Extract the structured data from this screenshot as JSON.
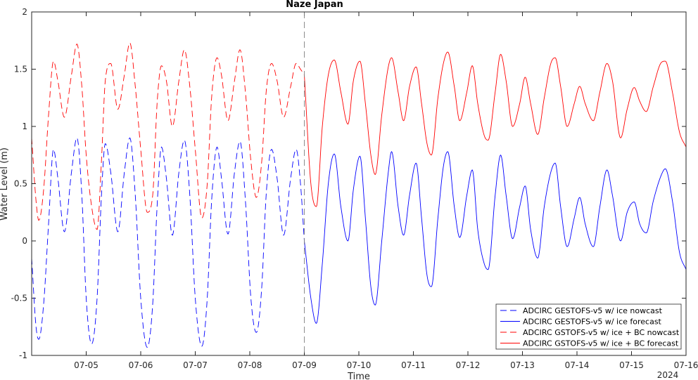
{
  "chart_data": {
    "type": "line",
    "title": "Naze Japan",
    "xlabel": "Time",
    "ylabel": "Water Level (m)",
    "year_label": "2024",
    "xlim": [
      0,
      12
    ],
    "ylim": [
      -1,
      2
    ],
    "x_ticks": [
      "07-05",
      "07-06",
      "07-07",
      "07-08",
      "07-09",
      "07-10",
      "07-11",
      "07-12",
      "07-13",
      "07-14",
      "07-15",
      "07-16"
    ],
    "y_ticks": [
      "-1",
      "-0.5",
      "0",
      "0.5",
      "1",
      "1.5",
      "2"
    ],
    "nowcast_end": 5,
    "legend_position": "bottom-right",
    "colors": {
      "blue": "#0000ff",
      "red": "#ff0000",
      "divider": "#808080"
    },
    "series": [
      {
        "name": "ADCIRC GESTOFS-v5 w/ ice nowcast",
        "color": "#0000ff",
        "style": "dashed",
        "x_range": [
          0,
          5
        ],
        "points": [
          [
            0.0,
            -0.15
          ],
          [
            0.08,
            -0.75
          ],
          [
            0.13,
            -0.86
          ],
          [
            0.22,
            -0.55
          ],
          [
            0.31,
            0.15
          ],
          [
            0.4,
            0.8
          ],
          [
            0.48,
            0.55
          ],
          [
            0.6,
            0.08
          ],
          [
            0.73,
            0.6
          ],
          [
            0.83,
            0.9
          ],
          [
            0.92,
            0.4
          ],
          [
            1.0,
            -0.5
          ],
          [
            1.1,
            -0.9
          ],
          [
            1.2,
            -0.5
          ],
          [
            1.28,
            0.4
          ],
          [
            1.35,
            0.85
          ],
          [
            1.45,
            0.6
          ],
          [
            1.58,
            0.08
          ],
          [
            1.7,
            0.6
          ],
          [
            1.8,
            0.9
          ],
          [
            1.9,
            0.4
          ],
          [
            2.0,
            -0.5
          ],
          [
            2.12,
            -0.93
          ],
          [
            2.22,
            -0.55
          ],
          [
            2.3,
            0.3
          ],
          [
            2.38,
            0.82
          ],
          [
            2.47,
            0.55
          ],
          [
            2.58,
            0.05
          ],
          [
            2.7,
            0.6
          ],
          [
            2.8,
            0.88
          ],
          [
            2.9,
            0.4
          ],
          [
            3.0,
            -0.5
          ],
          [
            3.12,
            -0.92
          ],
          [
            3.22,
            -0.5
          ],
          [
            3.3,
            0.35
          ],
          [
            3.4,
            0.82
          ],
          [
            3.48,
            0.55
          ],
          [
            3.6,
            0.06
          ],
          [
            3.72,
            0.6
          ],
          [
            3.82,
            0.87
          ],
          [
            3.92,
            0.35
          ],
          [
            4.02,
            -0.5
          ],
          [
            4.12,
            -0.8
          ],
          [
            4.22,
            -0.4
          ],
          [
            4.3,
            0.4
          ],
          [
            4.4,
            0.8
          ],
          [
            4.5,
            0.55
          ],
          [
            4.62,
            0.05
          ],
          [
            4.75,
            0.55
          ],
          [
            4.85,
            0.8
          ],
          [
            4.93,
            0.5
          ],
          [
            5.0,
            0.0
          ]
        ]
      },
      {
        "name": "ADCIRC GESTOFS-v5 w/ ice forecast",
        "color": "#0000ff",
        "style": "solid",
        "x_range": [
          5,
          12
        ],
        "points": [
          [
            5.0,
            0.0
          ],
          [
            5.12,
            -0.5
          ],
          [
            5.22,
            -0.72
          ],
          [
            5.33,
            -0.2
          ],
          [
            5.44,
            0.5
          ],
          [
            5.55,
            0.76
          ],
          [
            5.67,
            0.3
          ],
          [
            5.8,
            0.0
          ],
          [
            5.9,
            0.45
          ],
          [
            6.02,
            0.74
          ],
          [
            6.12,
            0.2
          ],
          [
            6.22,
            -0.4
          ],
          [
            6.3,
            -0.56
          ],
          [
            6.42,
            0.0
          ],
          [
            6.54,
            0.6
          ],
          [
            6.6,
            0.78
          ],
          [
            6.72,
            0.3
          ],
          [
            6.82,
            0.05
          ],
          [
            6.93,
            0.4
          ],
          [
            7.05,
            0.68
          ],
          [
            7.15,
            0.2
          ],
          [
            7.25,
            -0.3
          ],
          [
            7.33,
            -0.4
          ],
          [
            7.45,
            0.2
          ],
          [
            7.55,
            0.65
          ],
          [
            7.63,
            0.78
          ],
          [
            7.75,
            0.3
          ],
          [
            7.85,
            0.03
          ],
          [
            7.98,
            0.4
          ],
          [
            8.08,
            0.62
          ],
          [
            8.18,
            0.1
          ],
          [
            8.3,
            -0.2
          ],
          [
            8.37,
            -0.25
          ],
          [
            8.5,
            0.4
          ],
          [
            8.6,
            0.75
          ],
          [
            8.7,
            0.4
          ],
          [
            8.82,
            0.02
          ],
          [
            8.95,
            0.3
          ],
          [
            9.05,
            0.48
          ],
          [
            9.15,
            0.1
          ],
          [
            9.28,
            -0.15
          ],
          [
            9.4,
            0.3
          ],
          [
            9.52,
            0.6
          ],
          [
            9.6,
            0.68
          ],
          [
            9.7,
            0.3
          ],
          [
            9.82,
            -0.05
          ],
          [
            9.95,
            0.2
          ],
          [
            10.05,
            0.38
          ],
          [
            10.15,
            0.15
          ],
          [
            10.3,
            -0.05
          ],
          [
            10.42,
            0.3
          ],
          [
            10.55,
            0.62
          ],
          [
            10.65,
            0.4
          ],
          [
            10.8,
            0.0
          ],
          [
            10.92,
            0.25
          ],
          [
            11.05,
            0.34
          ],
          [
            11.15,
            0.15
          ],
          [
            11.27,
            0.07
          ],
          [
            11.4,
            0.35
          ],
          [
            11.55,
            0.58
          ],
          [
            11.62,
            0.63
          ],
          [
            11.75,
            0.35
          ],
          [
            11.88,
            -0.1
          ],
          [
            12.0,
            -0.25
          ]
        ]
      },
      {
        "name": "ADCIRC GSTOFS-v5 w/ ice + BC nowcast",
        "color": "#ff0000",
        "style": "dashed",
        "x_range": [
          0,
          5
        ],
        "points": [
          [
            0.0,
            0.9
          ],
          [
            0.08,
            0.35
          ],
          [
            0.13,
            0.18
          ],
          [
            0.22,
            0.45
          ],
          [
            0.31,
            1.1
          ],
          [
            0.4,
            1.57
          ],
          [
            0.48,
            1.4
          ],
          [
            0.6,
            1.08
          ],
          [
            0.73,
            1.45
          ],
          [
            0.83,
            1.72
          ],
          [
            0.92,
            1.35
          ],
          [
            1.0,
            0.75
          ],
          [
            1.1,
            0.3
          ],
          [
            1.2,
            0.1
          ],
          [
            1.28,
            0.7
          ],
          [
            1.35,
            1.4
          ],
          [
            1.45,
            1.55
          ],
          [
            1.58,
            1.15
          ],
          [
            1.7,
            1.45
          ],
          [
            1.8,
            1.73
          ],
          [
            1.9,
            1.35
          ],
          [
            2.0,
            0.8
          ],
          [
            2.12,
            0.25
          ],
          [
            2.22,
            0.4
          ],
          [
            2.3,
            1.2
          ],
          [
            2.38,
            1.53
          ],
          [
            2.47,
            1.4
          ],
          [
            2.58,
            1.0
          ],
          [
            2.7,
            1.4
          ],
          [
            2.8,
            1.67
          ],
          [
            2.9,
            1.35
          ],
          [
            3.0,
            0.8
          ],
          [
            3.12,
            0.2
          ],
          [
            3.22,
            0.5
          ],
          [
            3.3,
            1.25
          ],
          [
            3.4,
            1.6
          ],
          [
            3.48,
            1.45
          ],
          [
            3.6,
            1.05
          ],
          [
            3.72,
            1.4
          ],
          [
            3.82,
            1.67
          ],
          [
            3.92,
            1.3
          ],
          [
            4.02,
            0.7
          ],
          [
            4.12,
            0.38
          ],
          [
            4.22,
            0.7
          ],
          [
            4.3,
            1.3
          ],
          [
            4.4,
            1.55
          ],
          [
            4.5,
            1.4
          ],
          [
            4.62,
            1.08
          ],
          [
            4.75,
            1.35
          ],
          [
            4.85,
            1.55
          ],
          [
            4.93,
            1.5
          ],
          [
            5.0,
            1.45
          ]
        ]
      },
      {
        "name": "ADCIRC GSTOFS-v5 w/ ice + BC forecast",
        "color": "#ff0000",
        "style": "solid",
        "x_range": [
          5,
          12
        ],
        "points": [
          [
            5.0,
            1.45
          ],
          [
            5.12,
            0.5
          ],
          [
            5.22,
            0.3
          ],
          [
            5.33,
            1.0
          ],
          [
            5.44,
            1.45
          ],
          [
            5.55,
            1.58
          ],
          [
            5.67,
            1.3
          ],
          [
            5.8,
            1.02
          ],
          [
            5.9,
            1.4
          ],
          [
            6.02,
            1.57
          ],
          [
            6.12,
            1.2
          ],
          [
            6.22,
            0.75
          ],
          [
            6.3,
            0.58
          ],
          [
            6.42,
            1.1
          ],
          [
            6.54,
            1.52
          ],
          [
            6.6,
            1.6
          ],
          [
            6.72,
            1.3
          ],
          [
            6.82,
            1.05
          ],
          [
            6.93,
            1.35
          ],
          [
            7.05,
            1.52
          ],
          [
            7.15,
            1.2
          ],
          [
            7.25,
            0.85
          ],
          [
            7.33,
            0.75
          ],
          [
            7.45,
            1.25
          ],
          [
            7.55,
            1.55
          ],
          [
            7.63,
            1.65
          ],
          [
            7.75,
            1.35
          ],
          [
            7.85,
            1.05
          ],
          [
            7.98,
            1.3
          ],
          [
            8.08,
            1.53
          ],
          [
            8.18,
            1.2
          ],
          [
            8.3,
            0.92
          ],
          [
            8.37,
            0.88
          ],
          [
            8.5,
            1.3
          ],
          [
            8.6,
            1.63
          ],
          [
            8.7,
            1.4
          ],
          [
            8.82,
            1.0
          ],
          [
            8.95,
            1.2
          ],
          [
            9.05,
            1.43
          ],
          [
            9.15,
            1.2
          ],
          [
            9.28,
            0.93
          ],
          [
            9.4,
            1.25
          ],
          [
            9.52,
            1.55
          ],
          [
            9.6,
            1.6
          ],
          [
            9.7,
            1.35
          ],
          [
            9.82,
            1.0
          ],
          [
            9.95,
            1.2
          ],
          [
            10.05,
            1.35
          ],
          [
            10.15,
            1.2
          ],
          [
            10.3,
            1.05
          ],
          [
            10.42,
            1.3
          ],
          [
            10.55,
            1.55
          ],
          [
            10.65,
            1.4
          ],
          [
            10.8,
            0.9
          ],
          [
            10.92,
            1.15
          ],
          [
            11.05,
            1.34
          ],
          [
            11.15,
            1.22
          ],
          [
            11.27,
            1.13
          ],
          [
            11.4,
            1.35
          ],
          [
            11.55,
            1.56
          ],
          [
            11.62,
            1.57
          ],
          [
            11.75,
            1.3
          ],
          [
            11.88,
            0.95
          ],
          [
            12.0,
            0.82
          ]
        ]
      }
    ]
  }
}
